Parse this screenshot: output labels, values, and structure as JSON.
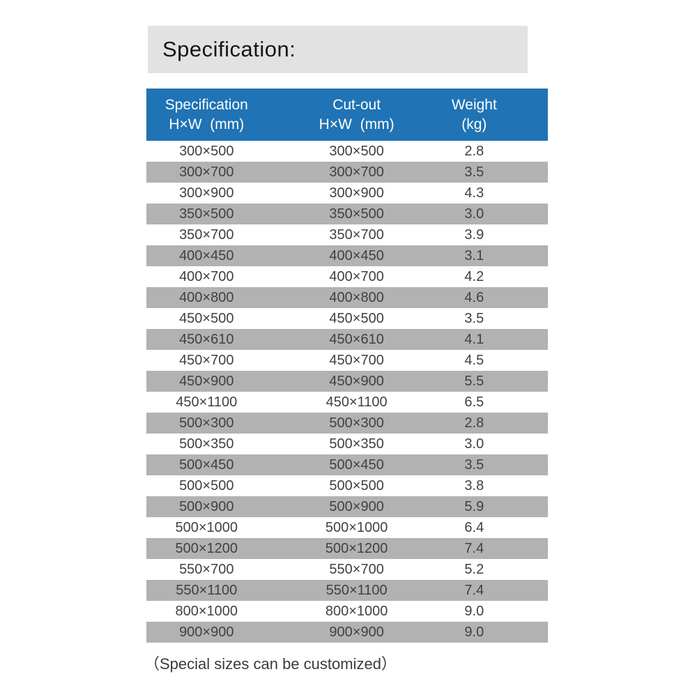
{
  "title": {
    "text": "Specification:"
  },
  "colors": {
    "header_background": "#2073b4",
    "header_text": "#ffffff",
    "stripe_odd": "#ffffff",
    "stripe_even": "#b2b2b2",
    "banner_background": "#e2e2e2",
    "row_text": "#414141"
  },
  "table": {
    "header": {
      "columns": [
        {
          "label": "Specification",
          "sub": "H×W  (mm)"
        },
        {
          "label": "Cut-out",
          "sub": "H×W  (mm)"
        },
        {
          "label": "Weight",
          "sub": "(kg)"
        }
      ]
    },
    "rows": [
      {
        "spec": "300×500",
        "cutout": "300×500",
        "weight": "2.8"
      },
      {
        "spec": "300×700",
        "cutout": "300×700",
        "weight": "3.5"
      },
      {
        "spec": "300×900",
        "cutout": "300×900",
        "weight": "4.3"
      },
      {
        "spec": "350×500",
        "cutout": "350×500",
        "weight": "3.0"
      },
      {
        "spec": "350×700",
        "cutout": "350×700",
        "weight": "3.9"
      },
      {
        "spec": "400×450",
        "cutout": "400×450",
        "weight": "3.1"
      },
      {
        "spec": "400×700",
        "cutout": "400×700",
        "weight": "4.2"
      },
      {
        "spec": "400×800",
        "cutout": "400×800",
        "weight": "4.6"
      },
      {
        "spec": "450×500",
        "cutout": "450×500",
        "weight": "3.5"
      },
      {
        "spec": "450×610",
        "cutout": "450×610",
        "weight": "4.1"
      },
      {
        "spec": "450×700",
        "cutout": "450×700",
        "weight": "4.5"
      },
      {
        "spec": "450×900",
        "cutout": "450×900",
        "weight": "5.5"
      },
      {
        "spec": "450×1100",
        "cutout": "450×1100",
        "weight": "6.5"
      },
      {
        "spec": "500×300",
        "cutout": "500×300",
        "weight": "2.8"
      },
      {
        "spec": "500×350",
        "cutout": "500×350",
        "weight": "3.0"
      },
      {
        "spec": "500×450",
        "cutout": "500×450",
        "weight": "3.5"
      },
      {
        "spec": "500×500",
        "cutout": "500×500",
        "weight": "3.8"
      },
      {
        "spec": "500×900",
        "cutout": "500×900",
        "weight": "5.9"
      },
      {
        "spec": "500×1000",
        "cutout": "500×1000",
        "weight": "6.4"
      },
      {
        "spec": "500×1200",
        "cutout": "500×1200",
        "weight": "7.4"
      },
      {
        "spec": "550×700",
        "cutout": "550×700",
        "weight": "5.2"
      },
      {
        "spec": "550×1100",
        "cutout": "550×1100",
        "weight": "7.4"
      },
      {
        "spec": "800×1000",
        "cutout": "800×1000",
        "weight": "9.0"
      },
      {
        "spec": "900×900",
        "cutout": "900×900",
        "weight": "9.0"
      }
    ]
  },
  "footnote": {
    "text": "（Special sizes can be customized）"
  }
}
